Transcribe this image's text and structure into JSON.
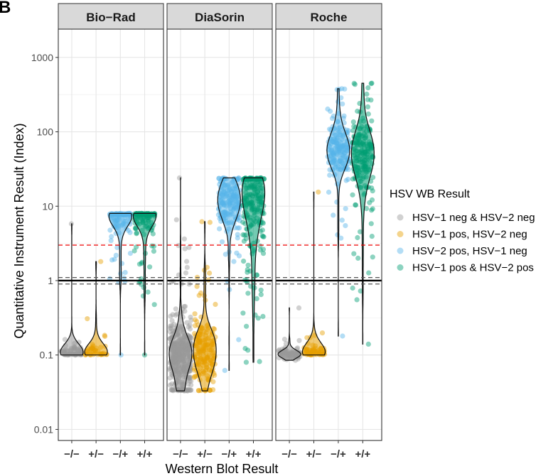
{
  "panel_label": "B",
  "chart_data": {
    "type": "scatter",
    "subtype": "jitter-violin, faceted",
    "y_scale": "log10",
    "ylim": [
      0.0071,
      2400
    ],
    "ylabel": "Quantitative Instrument Result (Index)",
    "xlabel": "Western Blot Result",
    "y_ticks": [
      0.01,
      0.1,
      1,
      10,
      100,
      1000
    ],
    "y_tick_labels": [
      "0.01",
      "0.1",
      "1",
      "10",
      "100",
      "1000"
    ],
    "categories": [
      "−/−",
      "+/−",
      "−/+",
      "+/+"
    ],
    "grid": true,
    "legend": {
      "title": "HSV WB Result",
      "placement": "right",
      "entries": [
        {
          "label": "HSV−1 neg & HSV−2 neg",
          "color": "#999999"
        },
        {
          "label": "HSV−1 pos, HSV−2 neg",
          "color": "#E69F00"
        },
        {
          "label": "HSV−2 pos, HSV−1 neg",
          "color": "#56B4E9"
        },
        {
          "label": "HSV−1 pos & HSV−2 pos",
          "color": "#009E73"
        }
      ]
    },
    "reference_lines": [
      {
        "y": 1,
        "style": "solid",
        "color": "#000000"
      },
      {
        "y": 0.9,
        "style": "dashed",
        "color": "#555555"
      },
      {
        "y": 1.1,
        "style": "dashed",
        "color": "#555555"
      },
      {
        "y": 3.0,
        "style": "dashed",
        "color": "#ee0000"
      }
    ],
    "panels": [
      {
        "name": "Bio−Rad",
        "groups": [
          {
            "category": "−/−",
            "n": 60,
            "min": 0.1,
            "max": 5.8,
            "median": 0.1,
            "mode": 0.105,
            "spread": 0.12,
            "tail": 0.18
          },
          {
            "category": "+/−",
            "n": 40,
            "min": 0.1,
            "max": 1.8,
            "median": 0.1,
            "mode": 0.105,
            "spread": 0.12,
            "tail": 0.22
          },
          {
            "category": "−/+",
            "n": 110,
            "min": 0.1,
            "max": 8.0,
            "median": 5.0,
            "mode": 7.8,
            "spread": 0.3,
            "tail": 0.25
          },
          {
            "category": "+/+",
            "n": 130,
            "min": 0.1,
            "max": 8.0,
            "median": 4.0,
            "mode": 7.8,
            "spread": 0.35,
            "tail": 0.35
          }
        ]
      },
      {
        "name": "DiaSorin",
        "groups": [
          {
            "category": "−/−",
            "n": 420,
            "min": 0.033,
            "max": 24,
            "median": 0.15,
            "mode": 0.1,
            "spread": 0.5,
            "tail": 0.15
          },
          {
            "category": "+/−",
            "n": 190,
            "min": 0.033,
            "max": 6.2,
            "median": 0.12,
            "mode": 0.11,
            "spread": 0.45,
            "tail": 0.2
          },
          {
            "category": "−/+",
            "n": 170,
            "min": 0.062,
            "max": 24,
            "median": 10,
            "mode": 12,
            "spread": 0.4,
            "tail": 0.25
          },
          {
            "category": "+/+",
            "n": 210,
            "min": 0.08,
            "max": 24,
            "median": 5,
            "mode": 12,
            "spread": 0.55,
            "tail": 0.35
          }
        ]
      },
      {
        "name": "Roche",
        "groups": [
          {
            "category": "−/−",
            "n": 80,
            "min": 0.085,
            "max": 0.43,
            "median": 0.105,
            "mode": 0.105,
            "spread": 0.06,
            "tail": 0.12
          },
          {
            "category": "+/−",
            "n": 70,
            "min": 0.1,
            "max": 15.5,
            "median": 0.11,
            "mode": 0.11,
            "spread": 0.1,
            "tail": 0.3
          },
          {
            "category": "−/+",
            "n": 170,
            "min": 0.18,
            "max": 380,
            "median": 50,
            "mode": 60,
            "spread": 0.4,
            "tail": 0.18
          },
          {
            "category": "+/+",
            "n": 200,
            "min": 0.14,
            "max": 450,
            "median": 40,
            "mode": 50,
            "spread": 0.55,
            "tail": 0.25
          }
        ]
      }
    ]
  }
}
